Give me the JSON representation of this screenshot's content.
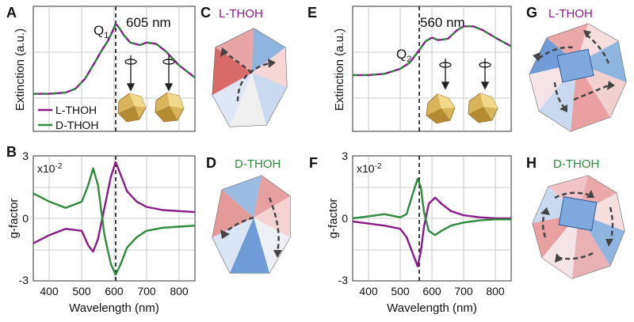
{
  "colors": {
    "l_thoh": "#8a1a8a",
    "d_thoh": "#2e8b3e",
    "grid": "#bdbdbd"
  },
  "panels": {
    "A": {
      "letter": "A",
      "ylabel": "Extinction (a.u.)",
      "peak_label": "605 nm",
      "q_label": "Q",
      "q_sub": "1"
    },
    "B": {
      "letter": "B",
      "ylabel": "g-factor",
      "scale_note": "x10",
      "scale_exp": "-2",
      "yticks": [
        "3",
        "0",
        "-3"
      ],
      "xticks": [
        "400",
        "500",
        "600",
        "700",
        "800"
      ],
      "xlabel": "Wavelength (nm)"
    },
    "C": {
      "letter": "C",
      "title": "L-THOH"
    },
    "D": {
      "letter": "D",
      "title": "D-THOH"
    },
    "E": {
      "letter": "E",
      "ylabel": "Extinction (a.u.)",
      "peak_label": "560 nm",
      "q_label": "Q",
      "q_sub": "2"
    },
    "F": {
      "letter": "F",
      "ylabel": "g-factor",
      "scale_note": "x10",
      "scale_exp": "-2",
      "yticks": [
        "3",
        "0",
        "-3"
      ],
      "xticks": [
        "400",
        "500",
        "600",
        "700",
        "800"
      ],
      "xlabel": "Wavelength (nm)"
    },
    "G": {
      "letter": "G",
      "title": "L-THOH"
    },
    "H": {
      "letter": "H",
      "title": "D-THOH"
    }
  },
  "legend": {
    "l_thoh": "L-THOH",
    "d_thoh": "D-THOH"
  },
  "chart_data": [
    {
      "panel": "A",
      "type": "line",
      "xlabel": "",
      "ylabel": "Extinction (a.u.)",
      "xlim": [
        350,
        850
      ],
      "ylim": [
        0,
        1
      ],
      "dashed_vline": 605,
      "x": [
        350,
        400,
        450,
        480,
        510,
        540,
        560,
        580,
        595,
        605,
        615,
        630,
        650,
        680,
        700,
        730,
        760,
        800,
        850
      ],
      "series": [
        {
          "name": "L-THOH",
          "values": [
            0.3,
            0.3,
            0.31,
            0.34,
            0.42,
            0.55,
            0.64,
            0.72,
            0.8,
            0.86,
            0.83,
            0.77,
            0.71,
            0.69,
            0.71,
            0.7,
            0.64,
            0.53,
            0.43
          ]
        },
        {
          "name": "D-THOH",
          "values": [
            0.3,
            0.3,
            0.31,
            0.34,
            0.42,
            0.55,
            0.64,
            0.72,
            0.8,
            0.86,
            0.83,
            0.77,
            0.71,
            0.69,
            0.71,
            0.7,
            0.64,
            0.53,
            0.43
          ]
        }
      ]
    },
    {
      "panel": "B",
      "type": "line",
      "xlabel": "Wavelength (nm)",
      "ylabel": "g-factor",
      "xlim": [
        350,
        850
      ],
      "ylim": [
        -3,
        3
      ],
      "dashed_vline": 605,
      "x": [
        350,
        400,
        450,
        500,
        520,
        535,
        550,
        570,
        590,
        605,
        620,
        640,
        670,
        700,
        750,
        800,
        850
      ],
      "series": [
        {
          "name": "L-THOH",
          "values": [
            -1.2,
            -0.8,
            -0.5,
            -0.6,
            -1.3,
            -1.6,
            -1.0,
            0.5,
            2.0,
            2.7,
            2.1,
            1.3,
            0.8,
            0.55,
            0.4,
            0.35,
            0.3
          ]
        },
        {
          "name": "D-THOH",
          "values": [
            1.2,
            0.8,
            0.5,
            0.8,
            1.6,
            2.4,
            1.6,
            -0.8,
            -2.2,
            -2.7,
            -2.2,
            -1.4,
            -0.9,
            -0.6,
            -0.45,
            -0.4,
            -0.35
          ]
        }
      ]
    },
    {
      "panel": "E",
      "type": "line",
      "xlabel": "",
      "ylabel": "Extinction (a.u.)",
      "xlim": [
        350,
        850
      ],
      "ylim": [
        0,
        1
      ],
      "dashed_vline": 560,
      "x": [
        350,
        400,
        450,
        500,
        530,
        560,
        580,
        600,
        620,
        650,
        680,
        700,
        730,
        760,
        800,
        850
      ],
      "series": [
        {
          "name": "L-THOH",
          "values": [
            0.45,
            0.45,
            0.46,
            0.5,
            0.55,
            0.65,
            0.72,
            0.75,
            0.73,
            0.74,
            0.81,
            0.84,
            0.84,
            0.81,
            0.75,
            0.68
          ]
        },
        {
          "name": "D-THOH",
          "values": [
            0.45,
            0.45,
            0.46,
            0.5,
            0.55,
            0.65,
            0.72,
            0.75,
            0.73,
            0.74,
            0.81,
            0.84,
            0.84,
            0.81,
            0.75,
            0.68
          ]
        }
      ]
    },
    {
      "panel": "F",
      "type": "line",
      "xlabel": "Wavelength (nm)",
      "ylabel": "g-factor",
      "xlim": [
        350,
        850
      ],
      "ylim": [
        -3,
        3
      ],
      "dashed_vline": 560,
      "x": [
        350,
        400,
        450,
        500,
        520,
        540,
        555,
        565,
        575,
        590,
        610,
        630,
        660,
        700,
        750,
        800,
        850
      ],
      "series": [
        {
          "name": "L-THOH",
          "values": [
            -0.15,
            -0.25,
            -0.35,
            -0.5,
            -0.9,
            -1.7,
            -2.3,
            -1.6,
            -0.4,
            0.7,
            1.0,
            0.7,
            0.35,
            0.15,
            0.05,
            0.0,
            0.0
          ]
        },
        {
          "name": "D-THOH",
          "values": [
            0.0,
            0.1,
            0.2,
            0.05,
            0.2,
            1.2,
            1.9,
            1.5,
            0.3,
            -0.6,
            -0.8,
            -0.6,
            -0.35,
            -0.2,
            -0.1,
            -0.05,
            -0.05
          ]
        }
      ]
    }
  ]
}
